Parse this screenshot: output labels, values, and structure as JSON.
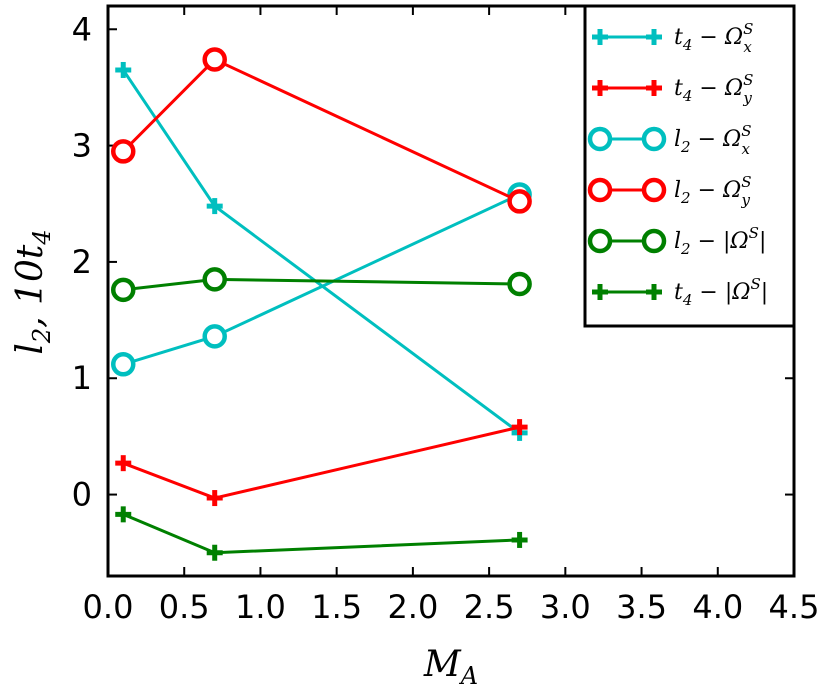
{
  "chart_data": {
    "type": "line",
    "xlabel": "M_A",
    "ylabel": "l_2, 10t_4",
    "xlim": [
      0.0,
      4.5
    ],
    "ylim": [
      -0.7,
      4.2
    ],
    "xticks": [
      "0.0",
      "0.5",
      "1.0",
      "1.5",
      "2.0",
      "2.5",
      "3.0",
      "3.5",
      "4.0",
      "4.5"
    ],
    "yticks": [
      "0",
      "1",
      "2",
      "3",
      "4"
    ],
    "grid": false,
    "legend_position": "top-right",
    "x": [
      0.1,
      0.7,
      2.7
    ],
    "series": [
      {
        "name": "t_4 − Ω_x^S",
        "color": "#00bfbf",
        "marker": "plus",
        "values": [
          3.65,
          2.48,
          0.53
        ]
      },
      {
        "name": "t_4 − Ω_y^S",
        "color": "#ff0000",
        "marker": "plus",
        "values": [
          0.27,
          -0.03,
          0.58
        ]
      },
      {
        "name": "l_2 − Ω_x^S",
        "color": "#00bfbf",
        "marker": "circle",
        "values": [
          1.12,
          1.36,
          2.58
        ]
      },
      {
        "name": "l_2 − Ω_y^S",
        "color": "#ff0000",
        "marker": "circle",
        "values": [
          2.95,
          3.74,
          2.52
        ]
      },
      {
        "name": "l_2 − |Ω^S|",
        "color": "#008000",
        "marker": "circle",
        "values": [
          1.76,
          1.85,
          1.81
        ]
      },
      {
        "name": "t_4 − |Ω^S|",
        "color": "#008000",
        "marker": "plus",
        "values": [
          -0.17,
          -0.5,
          -0.39
        ]
      }
    ]
  }
}
